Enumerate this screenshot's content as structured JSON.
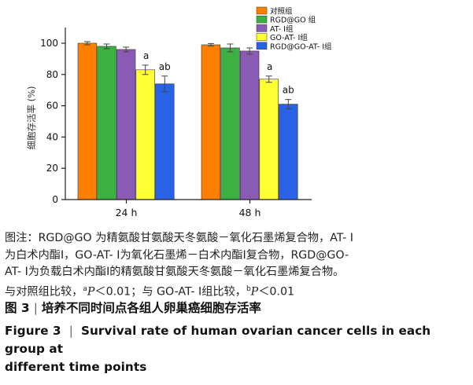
{
  "colors": {
    "control": "#ff8000",
    "rgd_go": "#3cb043",
    "at1": "#8a5bb5",
    "go_at1": "#ffff33",
    "rgd_go_at1": "#2a62e6"
  },
  "chart_data": {
    "type": "bar",
    "categories": [
      "24 h",
      "48 h"
    ],
    "ylabel": "细胞存活率 (%)",
    "ylim": [
      0,
      110
    ],
    "yticks": [
      "0",
      "20",
      "40",
      "60",
      "80",
      "100"
    ],
    "legend_position": "top-right",
    "series": [
      {
        "name": "对照组",
        "color_key": "control",
        "values": [
          100,
          99
        ],
        "errors": [
          1,
          0.8
        ],
        "labels": [
          "",
          ""
        ]
      },
      {
        "name": "RGD@GO 组",
        "color_key": "rgd_go",
        "values": [
          98,
          97
        ],
        "errors": [
          1.5,
          2.5
        ],
        "labels": [
          "",
          ""
        ]
      },
      {
        "name": "AT- Ⅰ组",
        "color_key": "at1",
        "values": [
          96,
          95
        ],
        "errors": [
          1.5,
          2
        ],
        "labels": [
          "",
          ""
        ]
      },
      {
        "name": "GO-AT- Ⅰ组",
        "color_key": "go_at1",
        "values": [
          83,
          77
        ],
        "errors": [
          3,
          2
        ],
        "labels": [
          "a",
          "a"
        ]
      },
      {
        "name": "RGD@GO-AT- Ⅰ组",
        "color_key": "rgd_go_at1",
        "values": [
          74,
          61
        ],
        "errors": [
          5,
          3
        ],
        "labels": [
          "ab",
          "ab"
        ]
      }
    ]
  },
  "caption": {
    "note_line1": "图注：RGD@GO 为精氨酸甘氨酸天冬氨酸－氧化石墨烯复合物，AT- Ⅰ",
    "note_line2": "为白术内酯Ⅰ，GO-AT- Ⅰ为氧化石墨烯－白术内酯Ⅰ复合物，RGD@GO-",
    "note_line3": "AT- Ⅰ为负载白术内酯Ⅰ的精氨酸甘氨酸天冬氨酸－氧化石墨烯复合物。",
    "note_line4_a": "与对照组比较，",
    "note_line4_sup_a": "a",
    "note_line4_p1": "P",
    "note_line4_b": "＜0.01；与 GO-AT- Ⅰ组比较，",
    "note_line4_sup_b": "b",
    "note_line4_p2": "P",
    "note_line4_c": "＜0.01",
    "fig_label_cn": "图 3",
    "fig_sep_cn": "|",
    "fig_title_cn": "培养不同时间点各组人卵巢癌细胞存活率",
    "fig_label_en": "Figure 3",
    "fig_sep_en": "|",
    "fig_title_en_line1": "Survival rate of human ovarian cancer cells in each group at",
    "fig_title_en_line2": "different time points"
  }
}
